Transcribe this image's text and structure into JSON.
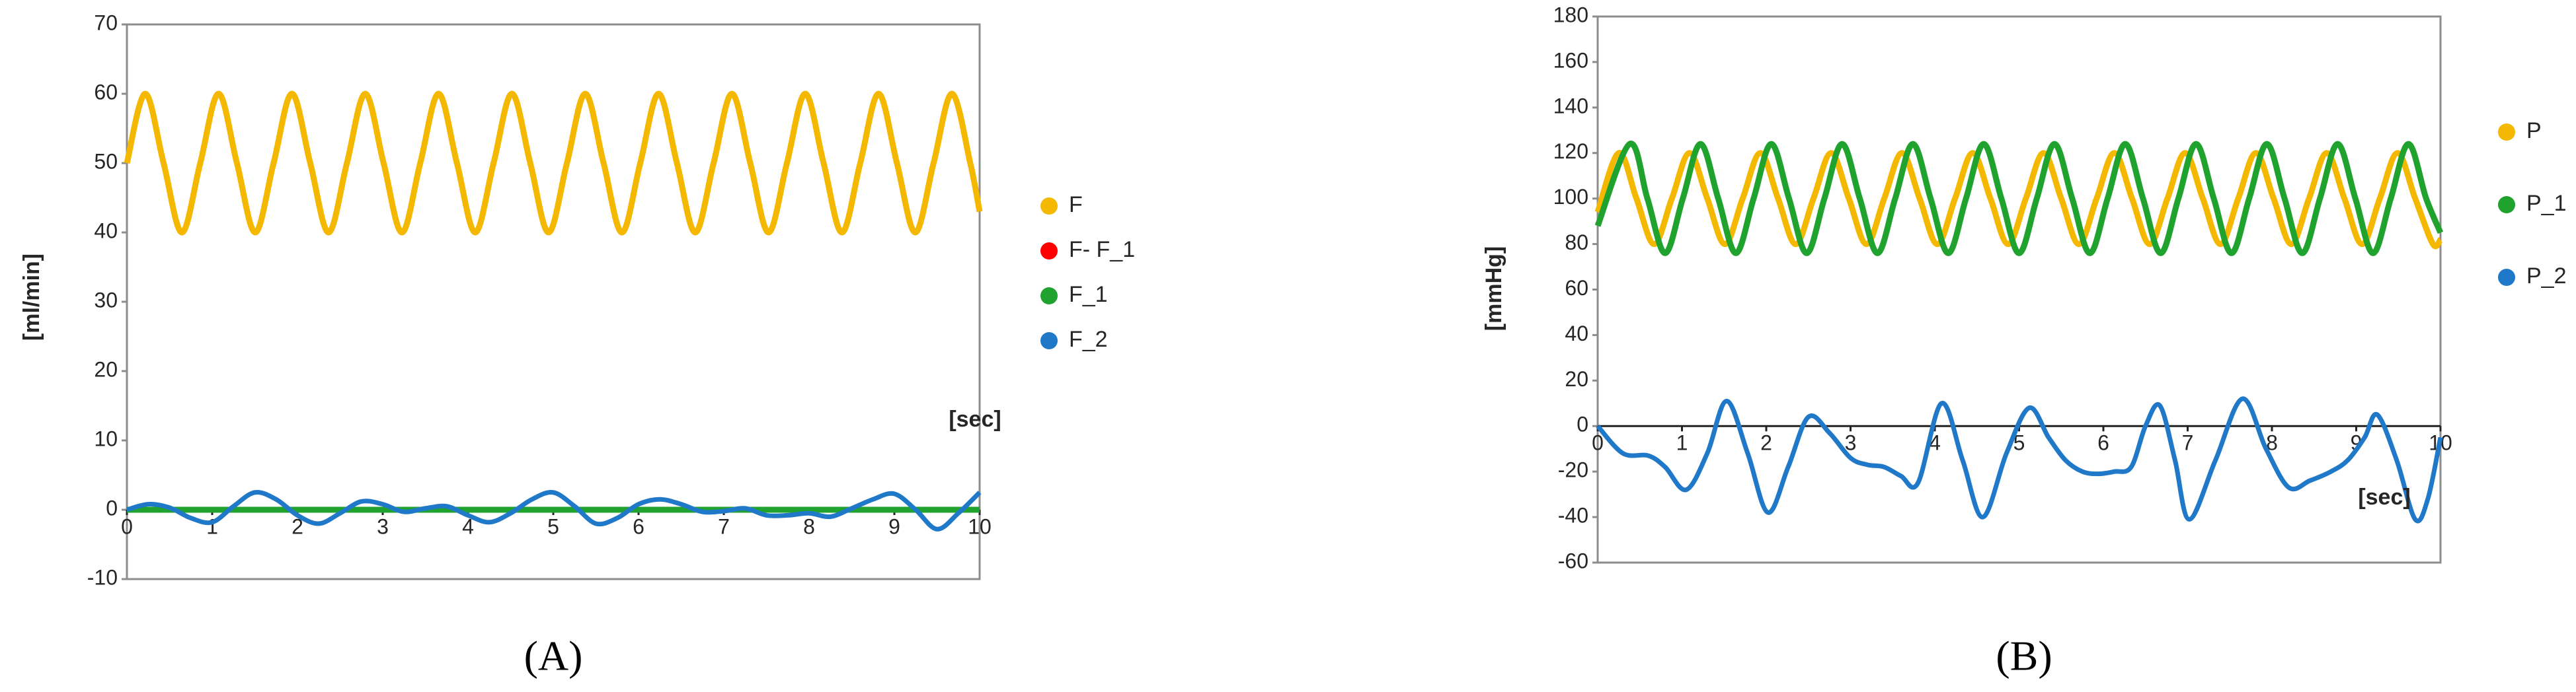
{
  "chart_data": [
    {
      "type": "line",
      "caption": "(A)",
      "ylabel": "[ml/min]",
      "xlabel": "[sec]",
      "xlim": [
        0,
        10
      ],
      "ylim": [
        -10,
        70
      ],
      "xticks": [
        0,
        1,
        2,
        3,
        4,
        5,
        6,
        7,
        8,
        9,
        10
      ],
      "yticks": [
        -10,
        0,
        10,
        20,
        30,
        40,
        50,
        60,
        70
      ],
      "series": [
        {
          "name": "F",
          "color": "#f5b800",
          "x": [
            0,
            0.215,
            0.43,
            0.645,
            0.86,
            1.075,
            1.29,
            1.505,
            1.72,
            1.935,
            2.15,
            2.365,
            2.58,
            2.795,
            3.01,
            3.225,
            3.44,
            3.655,
            3.87,
            4.085,
            4.3,
            4.515,
            4.73,
            4.945,
            5.16,
            5.375,
            5.59,
            5.805,
            6.02,
            6.235,
            6.45,
            6.665,
            6.88,
            7.095,
            7.31,
            7.525,
            7.74,
            7.955,
            8.17,
            8.385,
            8.6,
            8.815,
            9.03,
            9.245,
            9.46,
            9.675,
            9.89,
            10
          ],
          "values": [
            50,
            60,
            50,
            40,
            50,
            60,
            50,
            40,
            50,
            60,
            50,
            40,
            50,
            60,
            50,
            40,
            50,
            60,
            50,
            40,
            50,
            60,
            50,
            40,
            50,
            60,
            50,
            40,
            50,
            60,
            50,
            40,
            50,
            60,
            50,
            40,
            50,
            60,
            50,
            40,
            50,
            60,
            50,
            40,
            50,
            60,
            50,
            43
          ]
        },
        {
          "name": "F- F_1",
          "color": "#ff0000",
          "x": [
            0,
            10
          ],
          "values": [
            0,
            0
          ]
        },
        {
          "name": "F_1",
          "color": "#1fa22e",
          "x": [
            0,
            10
          ],
          "values": [
            0,
            0
          ]
        },
        {
          "name": "F_2",
          "color": "#1f78c8",
          "x": [
            0,
            0.25,
            0.5,
            0.75,
            1,
            1.25,
            1.5,
            1.75,
            2,
            2.25,
            2.5,
            2.75,
            3,
            3.25,
            3.5,
            3.75,
            4,
            4.25,
            4.5,
            4.75,
            5,
            5.25,
            5.5,
            5.75,
            6,
            6.25,
            6.5,
            6.75,
            7,
            7.25,
            7.5,
            7.75,
            8,
            8.25,
            8.5,
            8.75,
            9,
            9.25,
            9.5,
            9.75,
            10
          ],
          "values": [
            0,
            0.8,
            0.3,
            -1.2,
            -1.8,
            0.5,
            2.5,
            1.5,
            -0.8,
            -2,
            -0.5,
            1.2,
            0.8,
            -0.3,
            0.2,
            0.5,
            -0.8,
            -1.8,
            -0.5,
            1.5,
            2.5,
            0.5,
            -2,
            -1.2,
            0.8,
            1.5,
            0.8,
            -0.3,
            -0.2,
            0.2,
            -0.8,
            -0.8,
            -0.5,
            -1,
            0.2,
            1.5,
            2.3,
            0,
            -2.8,
            -0.5,
            2.5
          ]
        }
      ]
    },
    {
      "type": "line",
      "caption": "(B)",
      "ylabel": "[mmHg]",
      "xlabel": "[sec]",
      "xlim": [
        0,
        10
      ],
      "ylim": [
        -60,
        180
      ],
      "xticks": [
        0,
        1,
        2,
        3,
        4,
        5,
        6,
        7,
        8,
        9,
        10
      ],
      "yticks": [
        -60,
        -40,
        -20,
        0,
        20,
        40,
        60,
        80,
        100,
        120,
        140,
        160,
        180
      ],
      "series": [
        {
          "name": "P",
          "color": "#f5b800",
          "x": [
            0,
            0.25,
            0.46,
            0.67,
            0.88,
            1.09,
            1.3,
            1.51,
            1.72,
            1.93,
            2.14,
            2.35,
            2.56,
            2.77,
            2.98,
            3.19,
            3.4,
            3.61,
            3.82,
            4.03,
            4.24,
            4.45,
            4.66,
            4.87,
            5.08,
            5.29,
            5.5,
            5.71,
            5.92,
            6.13,
            6.34,
            6.55,
            6.76,
            6.97,
            7.18,
            7.39,
            7.6,
            7.81,
            8.02,
            8.23,
            8.44,
            8.65,
            8.86,
            9.07,
            9.28,
            9.49,
            9.7,
            9.91,
            10
          ],
          "values": [
            94,
            120,
            100,
            80,
            100,
            120,
            100,
            80,
            100,
            120,
            100,
            80,
            100,
            120,
            100,
            80,
            100,
            120,
            100,
            80,
            100,
            120,
            100,
            80,
            100,
            120,
            100,
            80,
            100,
            120,
            100,
            80,
            100,
            120,
            100,
            80,
            100,
            120,
            100,
            80,
            100,
            120,
            100,
            80,
            100,
            120,
            100,
            80,
            82
          ]
        },
        {
          "name": "P_1",
          "color": "#1fa22e",
          "x": [
            0,
            0.38,
            0.59,
            0.8,
            1.01,
            1.22,
            1.43,
            1.64,
            1.85,
            2.06,
            2.27,
            2.48,
            2.69,
            2.9,
            3.11,
            3.32,
            3.53,
            3.74,
            3.95,
            4.16,
            4.37,
            4.58,
            4.79,
            5,
            5.21,
            5.42,
            5.63,
            5.84,
            6.05,
            6.26,
            6.47,
            6.68,
            6.89,
            7.1,
            7.31,
            7.52,
            7.73,
            7.94,
            8.15,
            8.36,
            8.57,
            8.78,
            8.99,
            9.2,
            9.41,
            9.62,
            9.83,
            10
          ],
          "values": [
            88,
            124,
            100,
            76,
            100,
            124,
            100,
            76,
            100,
            124,
            100,
            76,
            100,
            124,
            100,
            76,
            100,
            124,
            100,
            76,
            100,
            124,
            100,
            76,
            100,
            124,
            100,
            76,
            100,
            124,
            100,
            76,
            100,
            124,
            100,
            76,
            100,
            124,
            100,
            76,
            100,
            124,
            100,
            76,
            100,
            124,
            100,
            85
          ]
        },
        {
          "name": "P_2",
          "color": "#1f78c8",
          "x": [
            0,
            0.3,
            0.6,
            0.8,
            1.05,
            1.3,
            1.53,
            1.78,
            2.02,
            2.26,
            2.5,
            2.75,
            3,
            3.2,
            3.4,
            3.6,
            3.8,
            4.08,
            4.33,
            4.57,
            4.85,
            5.12,
            5.35,
            5.55,
            5.75,
            5.94,
            6.13,
            6.33,
            6.5,
            6.67,
            6.85,
            7.02,
            7.33,
            7.65,
            7.93,
            8.2,
            8.45,
            8.7,
            8.9,
            9.1,
            9.25,
            9.48,
            9.7,
            9.85,
            10
          ],
          "values": [
            0,
            -12,
            -13,
            -18,
            -28,
            -12,
            11,
            -12,
            -38,
            -18,
            4,
            -3,
            -14,
            -17,
            -18,
            -22,
            -25,
            10,
            -15,
            -40,
            -12,
            8,
            -5,
            -15,
            -20,
            -21,
            -20,
            -18,
            0,
            9,
            -15,
            -41,
            -15,
            12,
            -10,
            -27,
            -24,
            -20,
            -15,
            -5,
            5,
            -15,
            -41,
            -32,
            -5
          ]
        }
      ]
    }
  ]
}
